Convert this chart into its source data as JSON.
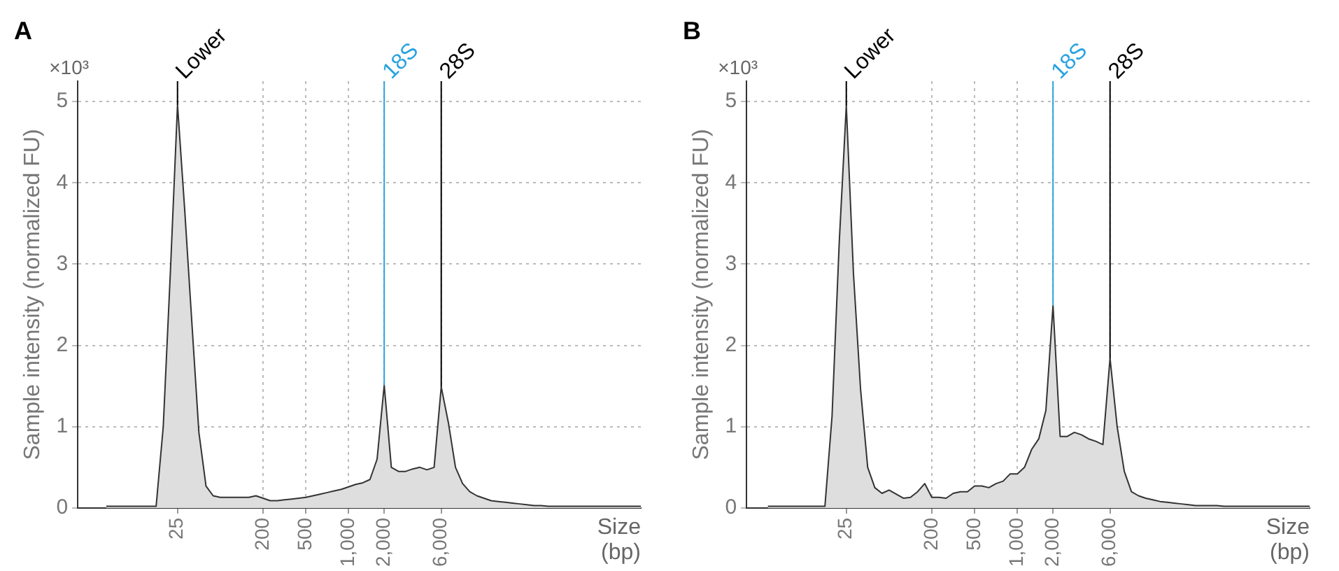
{
  "chart_data": [
    {
      "type": "area",
      "title": "A",
      "xlabel": "Size (bp)",
      "ylabel": "Sample intensity (normalized FU)",
      "annotations": [
        "×10³"
      ],
      "categories": [
        null,
        null,
        null,
        null,
        null,
        null,
        null,
        null,
        null,
        null,
        null,
        null,
        null,
        null,
        "25",
        null,
        null,
        null,
        null,
        null,
        null,
        null,
        null,
        null,
        null,
        null,
        "200",
        null,
        null,
        null,
        null,
        null,
        "500",
        null,
        null,
        null,
        null,
        null,
        "1,000",
        null,
        null,
        null,
        null,
        "2,000",
        null,
        null,
        null,
        null,
        null,
        null,
        null,
        "6,000",
        null,
        null,
        null,
        null,
        null,
        null,
        null,
        null,
        null,
        null,
        null,
        null,
        null,
        null,
        null,
        null,
        null,
        null,
        null,
        null,
        null,
        null,
        null,
        null,
        null,
        null,
        null,
        null
      ],
      "series": [
        {
          "color": "#dedede",
          "values": [
            null,
            null,
            null,
            null,
            0.02,
            0.02,
            0.02,
            0.02,
            0.02,
            0.02,
            0.02,
            0.02,
            1.0,
            2.9,
            4.96,
            3.68,
            2.3,
            0.93,
            0.27,
            0.15,
            0.13,
            0.13,
            0.13,
            0.13,
            0.13,
            0.15,
            0.12,
            0.09,
            0.09,
            0.1,
            0.11,
            0.12,
            0.13,
            0.15,
            0.17,
            0.19,
            0.21,
            0.23,
            0.26,
            0.29,
            0.31,
            0.35,
            0.6,
            1.51,
            0.5,
            0.45,
            0.45,
            0.48,
            0.5,
            0.47,
            0.5,
            1.49,
            1.05,
            0.5,
            0.3,
            0.2,
            0.15,
            0.12,
            0.09,
            0.08,
            0.07,
            0.06,
            0.05,
            0.04,
            0.03,
            0.03,
            0.02,
            0.02,
            0.02,
            0.02,
            0.02,
            0.02,
            0.02,
            0.02,
            0.02,
            0.02,
            0.02,
            0.02,
            0.02,
            0.02
          ]
        }
      ],
      "ylim": [
        0,
        5.25
      ],
      "yticks": [
        0,
        1,
        2,
        3,
        4,
        5
      ],
      "grid": true,
      "legend": false,
      "ref_lines": [
        {
          "axis": "x",
          "value": "25",
          "label": "Lower",
          "color": "#000000"
        },
        {
          "axis": "x",
          "value": "2,000",
          "label": "18S",
          "color": "#29a3e0"
        },
        {
          "axis": "x",
          "value": "6,000",
          "label": "28S",
          "color": "#000000"
        }
      ]
    },
    {
      "type": "area",
      "title": "B",
      "xlabel": "Size (bp)",
      "ylabel": "Sample intensity (normalized FU)",
      "annotations": [
        "×10³"
      ],
      "categories": [
        null,
        null,
        null,
        null,
        null,
        null,
        null,
        null,
        null,
        null,
        null,
        null,
        null,
        null,
        "25",
        null,
        null,
        null,
        null,
        null,
        null,
        null,
        null,
        null,
        null,
        null,
        "200",
        null,
        null,
        null,
        null,
        null,
        "500",
        null,
        null,
        null,
        null,
        null,
        "1,000",
        null,
        null,
        null,
        null,
        "2,000",
        null,
        null,
        null,
        null,
        null,
        null,
        null,
        "6,000",
        null,
        null,
        null,
        null,
        null,
        null,
        null,
        null,
        null,
        null,
        null,
        null,
        null,
        null,
        null,
        null,
        null,
        null,
        null,
        null,
        null,
        null,
        null,
        null,
        null,
        null,
        null,
        null
      ],
      "series": [
        {
          "color": "#dedede",
          "values": [
            null,
            null,
            null,
            0.02,
            0.02,
            0.02,
            0.02,
            0.02,
            0.02,
            0.02,
            0.02,
            0.02,
            1.13,
            3.25,
            4.95,
            2.89,
            1.46,
            0.5,
            0.25,
            0.18,
            0.22,
            0.17,
            0.12,
            0.13,
            0.2,
            0.3,
            0.13,
            0.13,
            0.12,
            0.18,
            0.2,
            0.2,
            0.27,
            0.27,
            0.25,
            0.3,
            0.33,
            0.42,
            0.42,
            0.5,
            0.72,
            0.85,
            1.2,
            2.49,
            0.88,
            0.88,
            0.93,
            0.9,
            0.85,
            0.82,
            0.78,
            1.84,
            1.0,
            0.45,
            0.2,
            0.15,
            0.12,
            0.1,
            0.08,
            0.07,
            0.06,
            0.05,
            0.04,
            0.03,
            0.03,
            0.03,
            0.03,
            0.02,
            0.02,
            0.02,
            0.02,
            0.02,
            0.02,
            0.02,
            0.02,
            0.02,
            0.02,
            0.02,
            0.02,
            0.02
          ]
        }
      ],
      "ylim": [
        0,
        5.25
      ],
      "yticks": [
        0,
        1,
        2,
        3,
        4,
        5
      ],
      "grid": true,
      "legend": false,
      "ref_lines": [
        {
          "axis": "x",
          "value": "25",
          "label": "Lower",
          "color": "#000000"
        },
        {
          "axis": "x",
          "value": "2,000",
          "label": "18S",
          "color": "#29a3e0"
        },
        {
          "axis": "x",
          "value": "6,000",
          "label": "28S",
          "color": "#000000"
        }
      ]
    }
  ]
}
